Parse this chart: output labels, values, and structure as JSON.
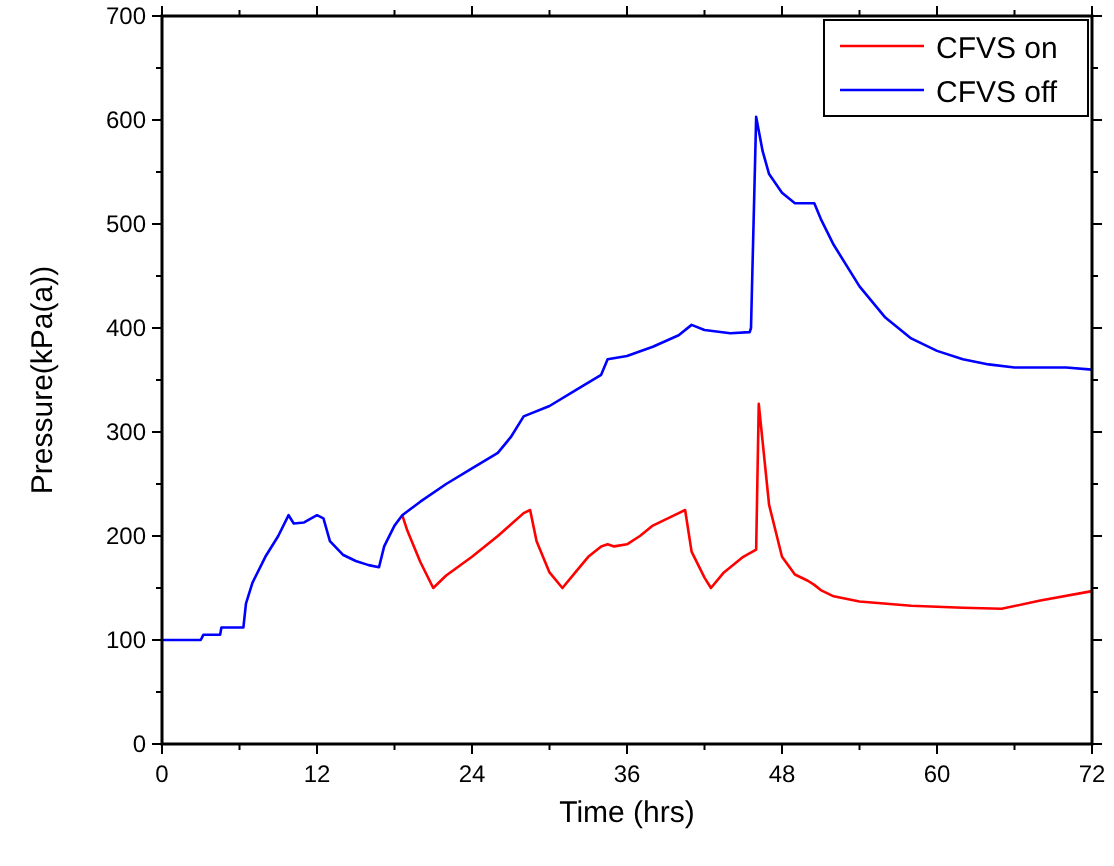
{
  "chart_data": {
    "type": "line",
    "xlabel": "Time (hrs)",
    "ylabel": "Pressure(kPa(a))",
    "xlim": [
      0,
      72
    ],
    "ylim": [
      0,
      700
    ],
    "xticks": [
      0,
      12,
      24,
      36,
      48,
      60,
      72
    ],
    "yticks": [
      0,
      100,
      200,
      300,
      400,
      500,
      600,
      700
    ],
    "legend": "top right",
    "grid": false,
    "marker": "none",
    "line_style": "solid",
    "series": [
      {
        "name": "CFVS on",
        "color": "#ff0000",
        "x": [
          18.6,
          19,
          20,
          21,
          22,
          24,
          26,
          28,
          28.5,
          29,
          30,
          31,
          32,
          33,
          34,
          34.5,
          35,
          36,
          37,
          38,
          40,
          40.5,
          41,
          42,
          42.5,
          43.5,
          45,
          46,
          46.2,
          47,
          48,
          49,
          50,
          50.5,
          51,
          52,
          54,
          58,
          62,
          65,
          68,
          72
        ],
        "values": [
          220,
          205,
          175,
          150,
          162,
          180,
          200,
          222,
          225,
          195,
          165,
          150,
          165,
          180,
          190,
          192,
          190,
          192,
          200,
          210,
          222,
          225,
          185,
          160,
          150,
          165,
          180,
          187,
          327,
          230,
          180,
          163,
          157,
          153,
          148,
          142,
          137,
          133,
          131,
          130,
          138,
          147
        ]
      },
      {
        "name": "CFVS off",
        "color": "#0000ff",
        "x": [
          0,
          3,
          3.2,
          4.5,
          4.6,
          6.3,
          6.5,
          7,
          8,
          9,
          9.8,
          10.2,
          11,
          12,
          12.5,
          13,
          14,
          15,
          16,
          16.8,
          17.2,
          18,
          18.6,
          20,
          22,
          24,
          26,
          27,
          28,
          30,
          32,
          34,
          34.5,
          36,
          38,
          40,
          41,
          42,
          44,
          45.5,
          45.6,
          46,
          46.5,
          47,
          48,
          49,
          50.5,
          51,
          52,
          54,
          56,
          58,
          60,
          62,
          64,
          66,
          68,
          70,
          72
        ],
        "values": [
          100,
          100,
          105,
          105,
          112,
          112,
          135,
          155,
          180,
          200,
          220,
          212,
          213,
          220,
          217,
          195,
          182,
          176,
          172,
          170,
          190,
          210,
          220,
          233,
          250,
          265,
          280,
          295,
          315,
          325,
          340,
          355,
          370,
          373,
          382,
          393,
          403,
          398,
          395,
          396,
          400,
          603,
          570,
          548,
          530,
          520,
          520,
          505,
          480,
          440,
          410,
          390,
          378,
          370,
          365,
          362,
          362,
          362,
          360
        ]
      }
    ]
  }
}
